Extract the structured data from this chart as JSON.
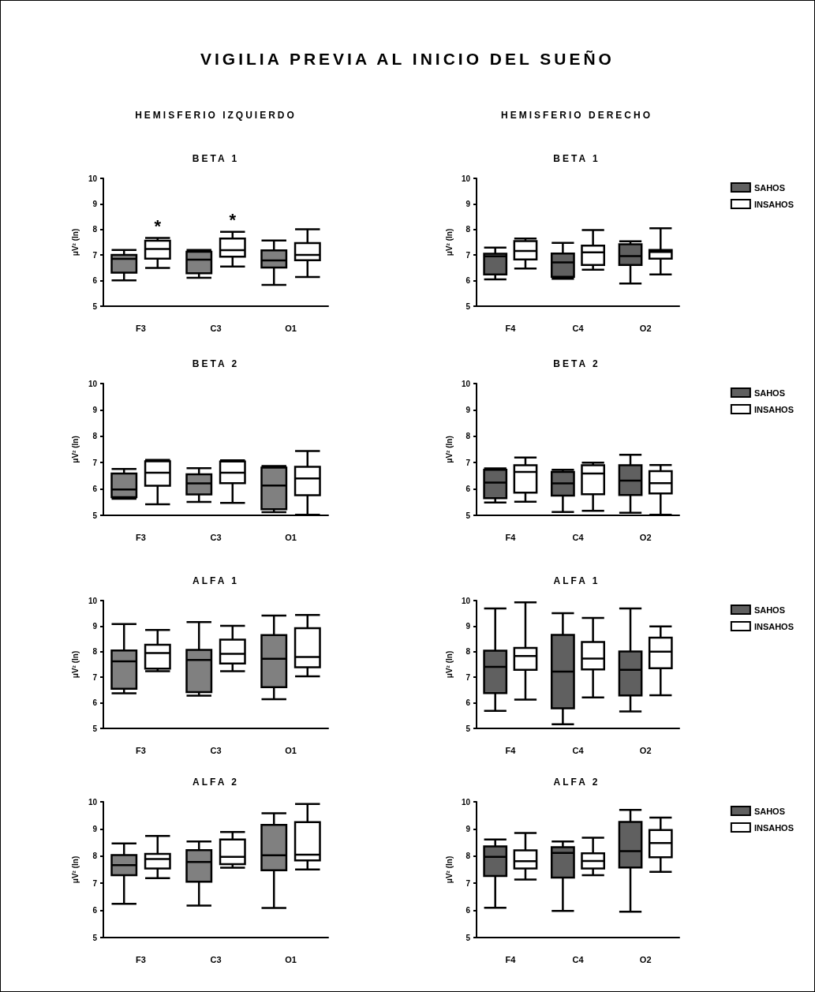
{
  "chart_data": [
    {
      "type": "other",
      "title": "VIGILIA PREVIA AL INICIO DEL SUEÑO",
      "annotations": [
        "HEMISFERIO IZQUIERDO",
        "HEMISFERIO DERECHO"
      ]
    },
    {
      "type": "box",
      "title": "BETA 1",
      "ylabel": "μV² (ln)",
      "categories": [
        "F3",
        "C3",
        "O1"
      ],
      "ylim": [
        5,
        10
      ],
      "yticks": [
        5,
        6,
        7,
        8,
        9,
        10
      ],
      "grid": false,
      "legend": false,
      "annotations": [
        "*",
        "*"
      ],
      "series": [
        {
          "color": "#808080",
          "boxes": [
            {
              "low": 6.01,
              "q1": 6.31,
              "median": 6.85,
              "q3": 7.01,
              "high": 7.2
            },
            {
              "low": 6.11,
              "q1": 6.29,
              "median": 6.82,
              "q3": 7.13,
              "high": 7.2
            },
            {
              "low": 5.83,
              "q1": 6.51,
              "median": 6.79,
              "q3": 7.18,
              "high": 7.57
            }
          ]
        },
        {
          "color": "#ffffff",
          "boxes": [
            {
              "low": 6.5,
              "q1": 6.86,
              "median": 7.24,
              "q3": 7.56,
              "high": 7.67
            },
            {
              "low": 6.55,
              "q1": 6.94,
              "median": 7.19,
              "q3": 7.65,
              "high": 7.91
            },
            {
              "low": 6.14,
              "q1": 6.8,
              "median": 7.01,
              "q3": 7.47,
              "high": 8.01
            }
          ]
        }
      ]
    },
    {
      "type": "box",
      "title": "BETA 1",
      "ylabel": "μV² (ln)",
      "categories": [
        "F4",
        "C4",
        "O2"
      ],
      "ylim": [
        5,
        10
      ],
      "yticks": [
        5,
        6,
        7,
        8,
        9,
        10
      ],
      "grid": false,
      "legend": "right",
      "series": [
        {
          "name": "SAHOS",
          "color": "#606060",
          "boxes": [
            {
              "low": 6.05,
              "q1": 6.24,
              "median": 6.95,
              "q3": 7.05,
              "high": 7.29
            },
            {
              "low": 6.07,
              "q1": 6.15,
              "median": 6.71,
              "q3": 7.06,
              "high": 7.48
            },
            {
              "low": 5.89,
              "q1": 6.61,
              "median": 6.96,
              "q3": 7.42,
              "high": 7.54
            }
          ]
        },
        {
          "name": "INSAHOS",
          "color": "#ffffff",
          "boxes": [
            {
              "low": 6.47,
              "q1": 6.83,
              "median": 7.16,
              "q3": 7.55,
              "high": 7.65
            },
            {
              "low": 6.43,
              "q1": 6.61,
              "median": 7.11,
              "q3": 7.37,
              "high": 7.98
            },
            {
              "low": 6.24,
              "q1": 6.86,
              "median": 7.12,
              "q3": 7.2,
              "high": 8.05
            }
          ]
        }
      ]
    },
    {
      "type": "box",
      "title": "BETA 2",
      "ylabel": "μV² (ln)",
      "categories": [
        "F3",
        "C3",
        "O1"
      ],
      "ylim": [
        5,
        10
      ],
      "yticks": [
        5,
        6,
        7,
        8,
        9,
        10
      ],
      "grid": false,
      "legend": false,
      "series": [
        {
          "color": "#808080",
          "boxes": [
            {
              "low": 5.63,
              "q1": 5.69,
              "median": 5.98,
              "q3": 6.59,
              "high": 6.76
            },
            {
              "low": 5.51,
              "q1": 5.79,
              "median": 6.21,
              "q3": 6.56,
              "high": 6.79
            },
            {
              "low": 5.12,
              "q1": 5.23,
              "median": 6.13,
              "q3": 6.81,
              "high": 6.87
            }
          ]
        },
        {
          "color": "#ffffff",
          "boxes": [
            {
              "low": 5.42,
              "q1": 6.12,
              "median": 6.62,
              "q3": 7.05,
              "high": 7.1
            },
            {
              "low": 5.47,
              "q1": 6.22,
              "median": 6.62,
              "q3": 7.04,
              "high": 7.09
            },
            {
              "low": 5.02,
              "q1": 5.76,
              "median": 6.4,
              "q3": 6.84,
              "high": 7.44
            }
          ]
        }
      ]
    },
    {
      "type": "box",
      "title": "BETA 2",
      "ylabel": "μV² (ln)",
      "categories": [
        "F4",
        "C4",
        "O2"
      ],
      "ylim": [
        5,
        10
      ],
      "yticks": [
        5,
        6,
        7,
        8,
        9,
        10
      ],
      "grid": false,
      "legend": "right",
      "series": [
        {
          "name": "SAHOS",
          "color": "#606060",
          "boxes": [
            {
              "low": 5.49,
              "q1": 5.65,
              "median": 6.24,
              "q3": 6.73,
              "high": 6.78
            },
            {
              "low": 5.13,
              "q1": 5.75,
              "median": 6.21,
              "q3": 6.65,
              "high": 6.73
            },
            {
              "low": 5.1,
              "q1": 5.77,
              "median": 6.32,
              "q3": 6.9,
              "high": 7.3
            }
          ]
        },
        {
          "name": "INSAHOS",
          "color": "#ffffff",
          "boxes": [
            {
              "low": 5.52,
              "q1": 5.86,
              "median": 6.65,
              "q3": 6.9,
              "high": 7.19
            },
            {
              "low": 5.17,
              "q1": 5.8,
              "median": 6.59,
              "q3": 6.9,
              "high": 7.0
            },
            {
              "low": 5.02,
              "q1": 5.83,
              "median": 6.22,
              "q3": 6.68,
              "high": 6.91
            }
          ]
        }
      ]
    },
    {
      "type": "box",
      "title": "ALFA 1",
      "ylabel": "μV² (ln)",
      "categories": [
        "F3",
        "C3",
        "O1"
      ],
      "ylim": [
        5,
        10
      ],
      "yticks": [
        5,
        6,
        7,
        8,
        9,
        10
      ],
      "grid": false,
      "legend": false,
      "series": [
        {
          "color": "#808080",
          "boxes": [
            {
              "low": 6.37,
              "q1": 6.55,
              "median": 7.62,
              "q3": 8.05,
              "high": 9.08
            },
            {
              "low": 6.28,
              "q1": 6.42,
              "median": 7.68,
              "q3": 8.07,
              "high": 9.16
            },
            {
              "low": 6.14,
              "q1": 6.61,
              "median": 7.72,
              "q3": 8.65,
              "high": 9.41
            }
          ]
        },
        {
          "color": "#ffffff",
          "boxes": [
            {
              "low": 7.24,
              "q1": 7.34,
              "median": 7.95,
              "q3": 8.27,
              "high": 8.85
            },
            {
              "low": 7.24,
              "q1": 7.54,
              "median": 7.92,
              "q3": 8.47,
              "high": 9.01
            },
            {
              "low": 7.04,
              "q1": 7.39,
              "median": 7.79,
              "q3": 8.92,
              "high": 9.44
            }
          ]
        }
      ]
    },
    {
      "type": "box",
      "title": "ALFA 1",
      "ylabel": "μV² (ln)",
      "categories": [
        "F4",
        "C4",
        "O2"
      ],
      "ylim": [
        5,
        10
      ],
      "yticks": [
        5,
        6,
        7,
        8,
        9,
        10
      ],
      "grid": false,
      "legend": "right",
      "series": [
        {
          "name": "SAHOS",
          "color": "#606060",
          "boxes": [
            {
              "low": 5.69,
              "q1": 6.38,
              "median": 7.41,
              "q3": 8.04,
              "high": 9.69
            },
            {
              "low": 5.16,
              "q1": 5.79,
              "median": 7.22,
              "q3": 8.66,
              "high": 9.51
            },
            {
              "low": 5.66,
              "q1": 6.29,
              "median": 7.29,
              "q3": 8.01,
              "high": 9.69
            }
          ]
        },
        {
          "name": "INSAHOS",
          "color": "#ffffff",
          "boxes": [
            {
              "low": 6.13,
              "q1": 7.29,
              "median": 7.83,
              "q3": 8.15,
              "high": 9.93
            },
            {
              "low": 6.21,
              "q1": 7.31,
              "median": 7.73,
              "q3": 8.38,
              "high": 9.32
            },
            {
              "low": 6.3,
              "q1": 7.35,
              "median": 8.0,
              "q3": 8.55,
              "high": 8.99
            }
          ]
        }
      ]
    },
    {
      "type": "box",
      "title": "ALFA 2",
      "ylabel": "μV² (ln)",
      "categories": [
        "F3",
        "C3",
        "O1"
      ],
      "ylim": [
        5,
        10
      ],
      "yticks": [
        5,
        6,
        7,
        8,
        9,
        10
      ],
      "grid": false,
      "legend": false,
      "series": [
        {
          "color": "#808080",
          "boxes": [
            {
              "low": 6.24,
              "q1": 7.3,
              "median": 7.67,
              "q3": 8.04,
              "high": 8.47
            },
            {
              "low": 6.18,
              "q1": 7.06,
              "median": 7.78,
              "q3": 8.22,
              "high": 8.54
            },
            {
              "low": 6.09,
              "q1": 7.48,
              "median": 8.03,
              "q3": 9.15,
              "high": 9.58
            }
          ]
        },
        {
          "color": "#ffffff",
          "boxes": [
            {
              "low": 7.19,
              "q1": 7.54,
              "median": 7.89,
              "q3": 8.08,
              "high": 8.74
            },
            {
              "low": 7.57,
              "q1": 7.7,
              "median": 7.97,
              "q3": 8.61,
              "high": 8.89
            },
            {
              "low": 7.51,
              "q1": 7.84,
              "median": 8.05,
              "q3": 9.25,
              "high": 9.92
            }
          ]
        }
      ]
    },
    {
      "type": "box",
      "title": "ALFA 2",
      "ylabel": "μV² (ln)",
      "categories": [
        "F4",
        "C4",
        "O2"
      ],
      "ylim": [
        5,
        10
      ],
      "yticks": [
        5,
        6,
        7,
        8,
        9,
        10
      ],
      "grid": false,
      "legend": "right",
      "series": [
        {
          "name": "SAHOS",
          "color": "#606060",
          "boxes": [
            {
              "low": 6.1,
              "q1": 7.27,
              "median": 7.97,
              "q3": 8.36,
              "high": 8.61
            },
            {
              "low": 5.98,
              "q1": 7.21,
              "median": 8.12,
              "q3": 8.33,
              "high": 8.54
            },
            {
              "low": 5.95,
              "q1": 7.58,
              "median": 8.18,
              "q3": 9.26,
              "high": 9.7
            }
          ]
        },
        {
          "name": "INSAHOS",
          "color": "#ffffff",
          "boxes": [
            {
              "low": 7.14,
              "q1": 7.54,
              "median": 7.81,
              "q3": 8.21,
              "high": 8.85
            },
            {
              "low": 7.3,
              "q1": 7.54,
              "median": 7.82,
              "q3": 8.1,
              "high": 8.68
            },
            {
              "low": 7.42,
              "q1": 7.96,
              "median": 8.48,
              "q3": 8.96,
              "high": 9.42
            }
          ]
        }
      ]
    }
  ]
}
